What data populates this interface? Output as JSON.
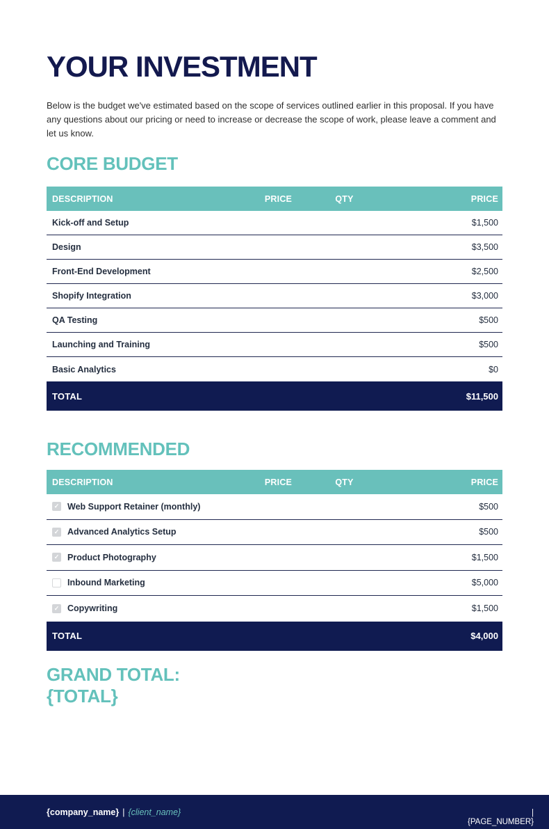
{
  "page": {
    "title": "YOUR INVESTMENT",
    "intro": "Below is the budget we've estimated based on the scope of services outlined earlier in this proposal. If you have any questions about our pricing or need to increase or decrease the scope of work, please leave a comment and let us know."
  },
  "colors": {
    "teal": "#69c0bb",
    "navy": "#101b51"
  },
  "core_budget": {
    "heading": "CORE BUDGET",
    "columns": [
      "DESCRIPTION",
      "PRICE",
      "QTY",
      "PRICE"
    ],
    "rows": [
      {
        "description": "Kick-off and Setup",
        "price": "$1,500"
      },
      {
        "description": "Design",
        "price": "$3,500"
      },
      {
        "description": "Front-End Development",
        "price": "$2,500"
      },
      {
        "description": "Shopify Integration",
        "price": "$3,000"
      },
      {
        "description": "QA Testing",
        "price": "$500"
      },
      {
        "description": "Launching and Training",
        "price": "$500"
      },
      {
        "description": "Basic Analytics",
        "price": "$0"
      }
    ],
    "total_label": "TOTAL",
    "total_value": "$11,500"
  },
  "recommended": {
    "heading": "RECOMMENDED",
    "columns": [
      "DESCRIPTION",
      "PRICE",
      "QTY",
      "PRICE"
    ],
    "rows": [
      {
        "description": "Web Support Retainer (monthly)",
        "price": "$500",
        "checked": true
      },
      {
        "description": "Advanced Analytics Setup",
        "price": "$500",
        "checked": true
      },
      {
        "description": "Product Photography",
        "price": "$1,500",
        "checked": true
      },
      {
        "description": "Inbound Marketing",
        "price": "$5,000",
        "checked": false
      },
      {
        "description": "Copywriting",
        "price": "$1,500",
        "checked": true
      }
    ],
    "total_label": "TOTAL",
    "total_value": "$4,000"
  },
  "grand_total": {
    "line1": "GRAND TOTAL:",
    "line2": "{TOTAL}"
  },
  "footer": {
    "company_name": "{company_name}",
    "divider": "|",
    "client_name": "{client_name}",
    "page_divider": "|",
    "page_number": "{PAGE_NUMBER}"
  }
}
